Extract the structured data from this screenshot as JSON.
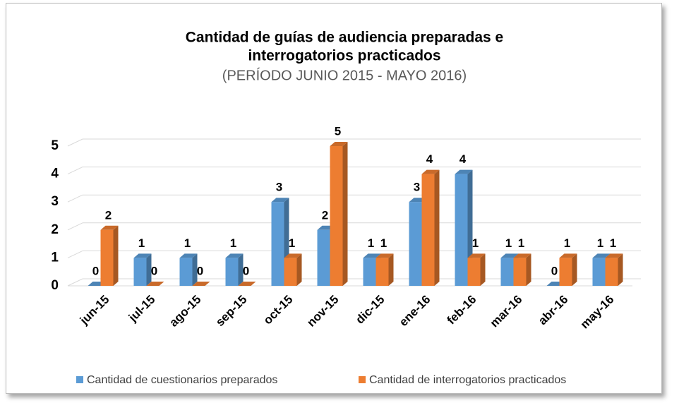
{
  "chart_data": {
    "type": "bar",
    "title": [
      "Cantidad de guías de audiencia preparadas e",
      "interrogatorios practicados"
    ],
    "subtitle": "(PERÍODO  JUNIO  2015  - MAYO 2016)",
    "categories": [
      "jun-15",
      "jul-15",
      "ago-15",
      "sep-15",
      "oct-15",
      "nov-15",
      "dic-15",
      "ene-16",
      "feb-16",
      "mar-16",
      "abr-16",
      "may-16"
    ],
    "series": [
      {
        "name": "Cantidad de cuestionarios preparados",
        "color": "#5b9bd5",
        "values": [
          0,
          1,
          1,
          1,
          3,
          2,
          1,
          3,
          4,
          1,
          0,
          1
        ]
      },
      {
        "name": "Cantidad de interrogatorios practicados",
        "color": "#ed7d31",
        "values": [
          2,
          0,
          0,
          0,
          1,
          5,
          1,
          4,
          1,
          1,
          1,
          1
        ]
      }
    ],
    "ylim": [
      0,
      5
    ],
    "yticks": [
      0,
      1,
      2,
      3,
      4,
      5
    ],
    "grid": true,
    "legend": "bottom"
  }
}
